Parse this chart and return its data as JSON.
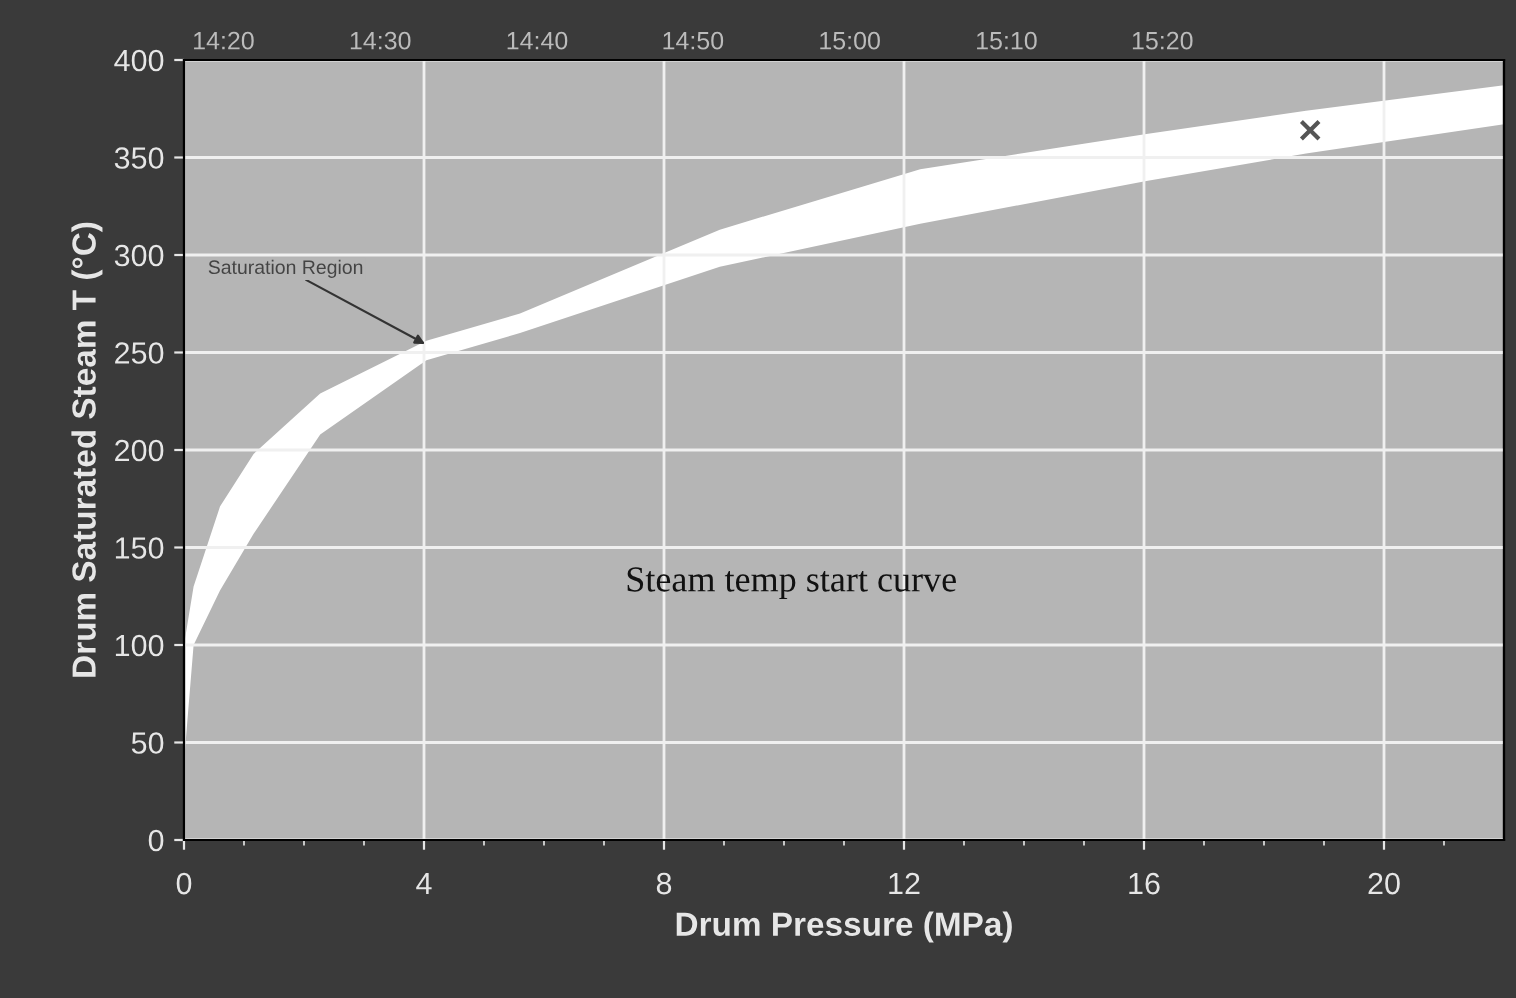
{
  "chart_data": {
    "type": "area",
    "xlabel": "Drum Pressure (MPa)",
    "ylabel": "Drum Saturated Steam T (°C)",
    "xlim": [
      0,
      22
    ],
    "ylim": [
      0,
      400
    ],
    "xticks": [
      0,
      {
        "value": 1,
        "label": null
      },
      {
        "value": 2,
        "label": null
      },
      {
        "value": 3,
        "label": null
      },
      4,
      {
        "value": 5,
        "label": null
      },
      {
        "value": 6,
        "label": null
      },
      {
        "value": 7,
        "label": null
      },
      8,
      {
        "value": 9,
        "label": null
      },
      {
        "value": 10,
        "label": null
      },
      {
        "value": 11,
        "label": null
      },
      12,
      {
        "value": 13,
        "label": null
      },
      {
        "value": 14,
        "label": null
      },
      {
        "value": 15,
        "label": null
      },
      16,
      {
        "value": 17,
        "label": null
      },
      {
        "value": 18,
        "label": null
      },
      {
        "value": 19,
        "label": null
      },
      20,
      {
        "value": 21,
        "label": null
      }
    ],
    "yticks": [
      0,
      50,
      100,
      150,
      200,
      250,
      300,
      350,
      400
    ],
    "x2lim": [
      14.291,
      15.697
    ],
    "x2ticks": [
      {
        "value": 14.333,
        "label": "14:20"
      },
      {
        "value": 14.5,
        "label": "14:30"
      },
      {
        "value": 14.667,
        "label": "14:40"
      },
      {
        "value": 14.833,
        "label": "14:50"
      },
      {
        "value": 15.0,
        "label": "15:00"
      },
      {
        "value": 15.167,
        "label": "15:10"
      },
      {
        "value": 15.333,
        "label": "15:20"
      }
    ],
    "grid": true,
    "series": [
      {
        "type": "area",
        "color": "#ffffff",
        "x": [
          0,
          0.16,
          0.6,
          1.16,
          2.27,
          4.04,
          5.6,
          8.93,
          12.27,
          16.04,
          18.7,
          22
        ],
        "values": [
          100,
          130,
          171,
          198,
          229,
          256,
          270,
          313,
          344,
          362,
          374,
          387
        ]
      },
      {
        "color": "#b5b5b5",
        "x": [
          0,
          0.16,
          0.6,
          1.16,
          2.27,
          4.04,
          5.6,
          8.93,
          12.27,
          16.04,
          18.7,
          22
        ],
        "values": [
          40,
          100,
          128,
          157,
          208,
          246,
          260,
          294,
          316,
          338,
          352,
          367
        ]
      },
      {
        "type": "scatter",
        "color": "#555555",
        "marker": "cross",
        "x": [
          18.77
        ],
        "values": [
          364
        ]
      }
    ],
    "annotations": [
      {
        "text": "Saturation Region",
        "x": 4.1,
        "y": 253
      },
      "Steam temp start curve"
    ]
  }
}
